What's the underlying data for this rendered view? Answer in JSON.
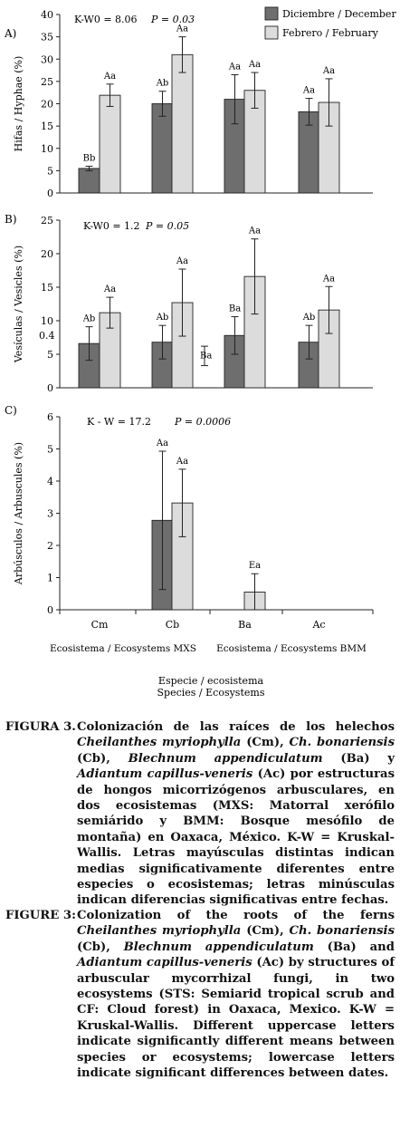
{
  "chart_data": [
    {
      "type": "bar",
      "panel": "A)",
      "ylabel": "Hifas / Hyphae (%)",
      "ylim": [
        0,
        40
      ],
      "yticks": [
        0,
        5,
        10,
        15,
        20,
        25,
        30,
        35,
        40
      ],
      "stat": "K-W0 = 8.06",
      "pvalue": "P = 0.03",
      "categories": [
        "Cm",
        "Cb",
        "Ba",
        "Ac"
      ],
      "series": [
        {
          "name": "Diciembre / December",
          "color": "#6e6e6e",
          "values": [
            5.5,
            20,
            21,
            18.2
          ],
          "err": [
            0.5,
            2.8,
            5.5,
            3
          ],
          "labels": [
            "Bb",
            "Ab",
            "Aa",
            "Aa"
          ]
        },
        {
          "name": "Febrero / February",
          "color": "#dcdcdc",
          "values": [
            21.9,
            31,
            23,
            20.3
          ],
          "err": [
            2.5,
            4,
            4,
            5.3
          ],
          "labels": [
            "Aa",
            "Aa",
            "Aa",
            "Aa"
          ]
        }
      ],
      "legend": "top-right"
    },
    {
      "type": "bar",
      "panel": "B)",
      "ylabel": "Vesículas / Vesicles (%)",
      "ylim": [
        0,
        25
      ],
      "yticks": [
        0,
        5,
        10,
        15,
        20,
        25
      ],
      "stat": "K-W0 = 1.2",
      "pvalue": "P = 0.05",
      "extra_label": "0.4",
      "categories": [
        "Cm",
        "Cb",
        "Ba",
        "Ac"
      ],
      "series": [
        {
          "name": "Diciembre / December",
          "color": "#6e6e6e",
          "values": [
            6.6,
            6.8,
            7.8,
            6.8
          ],
          "err": [
            2.5,
            2.5,
            2.8,
            2.5
          ],
          "labels": [
            "Ab",
            "Ab",
            "Ba",
            "Ab"
          ]
        },
        {
          "name": "Febrero / February",
          "color": "#dcdcdc",
          "values": [
            11.2,
            12.7,
            16.6,
            11.6
          ],
          "err": [
            2.3,
            5,
            5.6,
            3.5
          ],
          "labels": [
            "Aa",
            "Aa",
            "Aa",
            "Aa"
          ]
        }
      ]
    },
    {
      "type": "bar",
      "panel": "C)",
      "ylabel": "Arbúsculos / Arbuscules (%)",
      "ylim": [
        0,
        6
      ],
      "yticks": [
        0,
        1,
        2,
        3,
        4,
        5,
        6
      ],
      "stat": "K - W = 17.2",
      "pvalue": "P = 0.0006",
      "categories": [
        "Cm",
        "Cb",
        "Ba",
        "Ac"
      ],
      "series": [
        {
          "name": "Diciembre / December",
          "color": "#6e6e6e",
          "values": [
            null,
            2.78,
            null,
            null
          ],
          "err": [
            null,
            2.15,
            null,
            null
          ],
          "labels": [
            "",
            "Aa",
            "",
            ""
          ]
        },
        {
          "name": "Febrero / February",
          "color": "#dcdcdc",
          "values": [
            null,
            3.32,
            0.55,
            null
          ],
          "err": [
            null,
            1.05,
            0.57,
            null
          ],
          "labels": [
            "",
            "Aa",
            "Ea",
            ""
          ]
        }
      ],
      "group_labels": [
        "Ecosistema / Ecosystems MXS",
        "Ecosistema / Ecosystems BMM"
      ],
      "xlabel": [
        "Especie / ecosistema",
        "Species / Ecosystems"
      ]
    }
  ],
  "caption_es": {
    "label": "FIGURA 3.",
    "text": "Colonización de las raíces de los helechos <i>Cheilanthes myriophylla</i> (Cm), <i>Ch. bonariensis</i> (Cb), <i>Blechnum appendiculatum</i> (Ba) y <i>Adiantum capillus-veneris</i> (Ac) por estructuras de hongos micorrizógenos arbusculares, en dos ecosistemas (MXS: Matorral xerófilo semiárido y BMM: Bosque mesófilo de montaña) en Oaxaca, México. K-W = Kruskal-Wallis. Letras mayúsculas distintas indican medias significativamente diferentes entre especies o ecosistemas; letras minúsculas indican diferencias significativas entre fechas."
  },
  "caption_en": {
    "label": "FIGURE 3:",
    "text": "Colonization of the roots of the ferns <i>Cheilanthes myriophylla</i> (Cm), <i>Ch. bonariensis</i> (Cb), <i>Blechnum appendiculatum</i> (Ba) and <i>Adiantum capillus-veneris</i> (Ac) by structures of arbuscular mycorrhizal fungi, in two ecosystems (STS: Semiarid tropical scrub and CF: Cloud forest) in Oaxaca, Mexico. K-W = Kruskal-Wallis. Different uppercase letters indicate significantly different means between species or ecosystems; lowercase letters indicate significant differences between dates."
  }
}
